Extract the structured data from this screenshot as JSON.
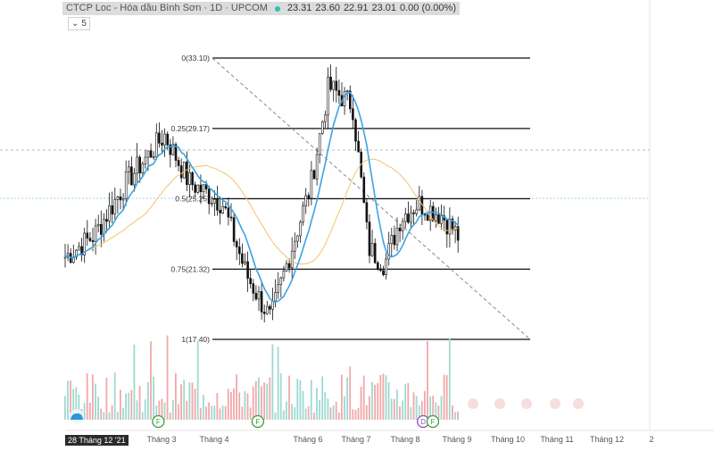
{
  "legend": {
    "title": "CTCP Loc - Hóa dầu Bình Sơn · 1D · UPCOM",
    "open": "23.31",
    "high": "23.60",
    "low": "22.91",
    "close": "23.01",
    "change": "0.00 (0.00%)",
    "dot_color": "#27c2b0"
  },
  "indicator_toggle": {
    "icon": "chevron-down-icon",
    "count": "5"
  },
  "date_badge": "28 Tháng 12 '21",
  "time_axis": {
    "labels": [
      "Tháng 3",
      "Tháng 4",
      "Tháng 6",
      "Tháng 7",
      "Tháng 8",
      "Tháng 9",
      "Tháng 10",
      "Tháng 11",
      "Tháng 12",
      "2"
    ]
  },
  "fib_levels": [
    {
      "label": "0(33.10)",
      "value": 33.1
    },
    {
      "label": "0.25(29.17)",
      "value": 29.17
    },
    {
      "label": "0.5(25.25)",
      "value": 25.25
    },
    {
      "label": "0.75(21.32)",
      "value": 21.32
    },
    {
      "label": "1(17.40)",
      "value": 17.4
    }
  ],
  "events": [
    {
      "letter": "F",
      "color": "#3aa03a",
      "date": "2022-02-24"
    },
    {
      "letter": "F",
      "color": "#3aa03a",
      "date": "2022-04-27"
    },
    {
      "letter": "D",
      "color": "#8c4fb5",
      "date": "2022-08-08"
    },
    {
      "letter": "F",
      "color": "#3aa03a",
      "date": "2022-08-14"
    }
  ],
  "colors": {
    "up_volume": "#9fd9d1",
    "down_volume": "#f2a8a8",
    "candle": "#111111",
    "ma_fast": "#3aa3e3",
    "ma_slow": "#f5c26b"
  },
  "chart_data": {
    "type": "candlestick",
    "symbol": "CTCP Loc - Hóa dầu Bình Sơn",
    "interval": "1D",
    "exchange": "UPCOM",
    "ohlc_last": {
      "open": 23.31,
      "high": 23.6,
      "low": 22.91,
      "close": 23.01
    },
    "approx_close_path": [
      {
        "date": "2021-12-28",
        "close": 22.0
      },
      {
        "date": "2022-01-15",
        "close": 23.2
      },
      {
        "date": "2022-02-05",
        "close": 26.3
      },
      {
        "date": "2022-02-28",
        "close": 28.8
      },
      {
        "date": "2022-03-15",
        "close": 26.2
      },
      {
        "date": "2022-04-05",
        "close": 25.0
      },
      {
        "date": "2022-04-20",
        "close": 21.0
      },
      {
        "date": "2022-05-05",
        "close": 18.5
      },
      {
        "date": "2022-05-15",
        "close": 21.6
      },
      {
        "date": "2022-05-30",
        "close": 26.0
      },
      {
        "date": "2022-06-10",
        "close": 31.5
      },
      {
        "date": "2022-06-25",
        "close": 30.5
      },
      {
        "date": "2022-07-05",
        "close": 22.5
      },
      {
        "date": "2022-07-15",
        "close": 21.6
      },
      {
        "date": "2022-07-25",
        "close": 24.2
      },
      {
        "date": "2022-08-05",
        "close": 25.0
      },
      {
        "date": "2022-08-20",
        "close": 24.3
      },
      {
        "date": "2022-08-31",
        "close": 23.0
      }
    ],
    "moving_averages": [
      {
        "name": "fast",
        "color": "#3aa3e3"
      },
      {
        "name": "slow",
        "color": "#f5c26b"
      }
    ],
    "fibonacci_retracement": [
      {
        "level": 0,
        "price": 33.1
      },
      {
        "level": 0.25,
        "price": 29.17
      },
      {
        "level": 0.5,
        "price": 25.25
      },
      {
        "level": 0.75,
        "price": 21.32
      },
      {
        "level": 1,
        "price": 17.4
      }
    ],
    "trend_line": {
      "from": {
        "date": "2022-04-05",
        "price": 33.1
      },
      "to": {
        "date": "2022-09-30",
        "price": 17.4
      }
    },
    "x_range": [
      "2021-12-28",
      "2022-12-31"
    ],
    "y_range": [
      17.0,
      35.0
    ]
  }
}
